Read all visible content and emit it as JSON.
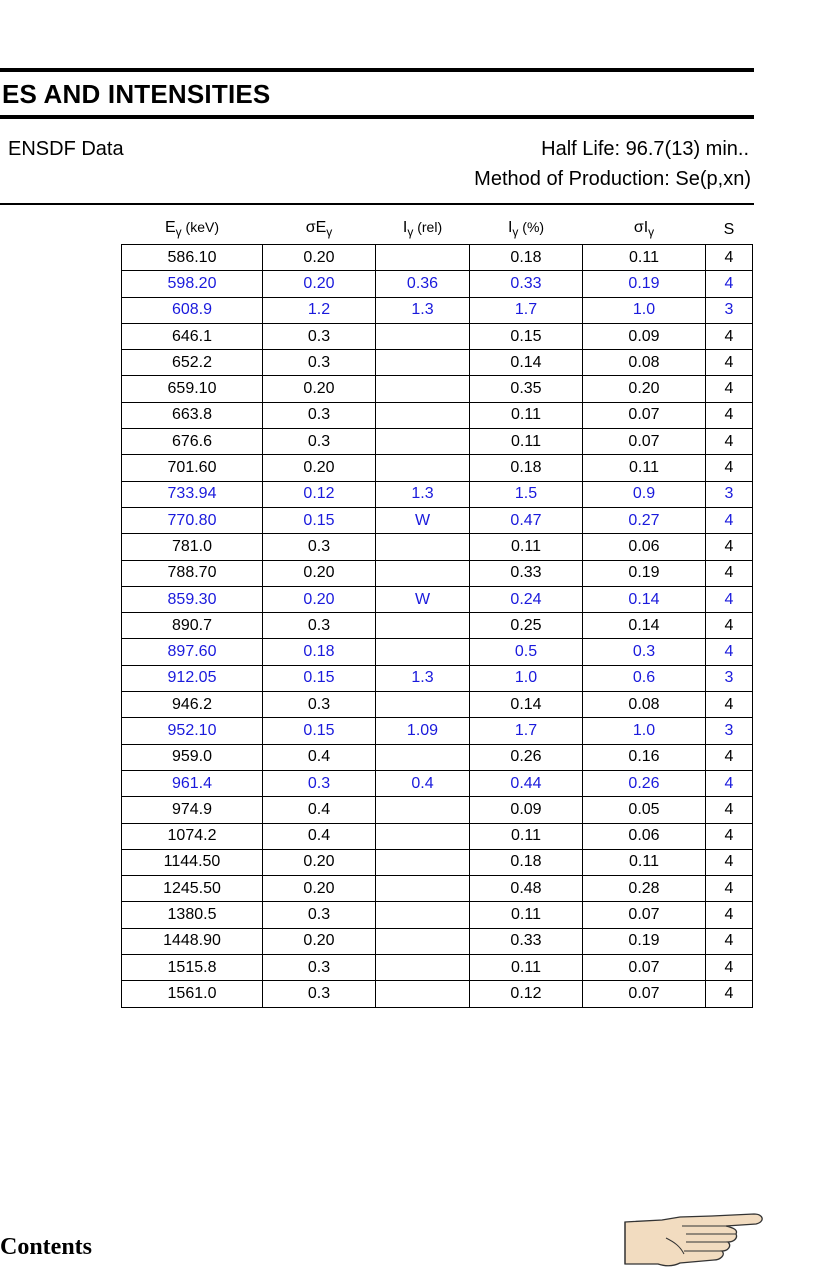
{
  "header": {
    "title": "ES AND INTENSITIES",
    "source": "ENSDF Data",
    "half_life": "Half Life: 96.7(13) min..",
    "method": "Method of Production: Se(p,xn)"
  },
  "table": {
    "columns": [
      {
        "main": "E",
        "sym": "γ",
        "tail": " (keV)"
      },
      {
        "sigma": "σ",
        "main": "E",
        "sym": "γ",
        "tail": ""
      },
      {
        "main": "I",
        "sym": "γ",
        "tail": " (rel)"
      },
      {
        "main": "I",
        "sym": "γ",
        "tail": " (%)"
      },
      {
        "sigma": "σ",
        "main": "I",
        "sym": "γ",
        "tail": ""
      },
      {
        "main": "S",
        "sym": "",
        "tail": ""
      }
    ],
    "rows": [
      {
        "cells": [
          "586.10",
          "0.20",
          "",
          "0.18",
          "0.11",
          "4"
        ],
        "highlight": false
      },
      {
        "cells": [
          "598.20",
          "0.20",
          "0.36",
          "0.33",
          "0.19",
          "4"
        ],
        "highlight": true
      },
      {
        "cells": [
          "608.9",
          "1.2",
          "1.3",
          "1.7",
          "1.0",
          "3"
        ],
        "highlight": true
      },
      {
        "cells": [
          "646.1",
          "0.3",
          "",
          "0.15",
          "0.09",
          "4"
        ],
        "highlight": false
      },
      {
        "cells": [
          "652.2",
          "0.3",
          "",
          "0.14",
          "0.08",
          "4"
        ],
        "highlight": false
      },
      {
        "cells": [
          "659.10",
          "0.20",
          "",
          "0.35",
          "0.20",
          "4"
        ],
        "highlight": false
      },
      {
        "cells": [
          "663.8",
          "0.3",
          "",
          "0.11",
          "0.07",
          "4"
        ],
        "highlight": false
      },
      {
        "cells": [
          "676.6",
          "0.3",
          "",
          "0.11",
          "0.07",
          "4"
        ],
        "highlight": false
      },
      {
        "cells": [
          "701.60",
          "0.20",
          "",
          "0.18",
          "0.11",
          "4"
        ],
        "highlight": false
      },
      {
        "cells": [
          "733.94",
          "0.12",
          "1.3",
          "1.5",
          "0.9",
          "3"
        ],
        "highlight": true
      },
      {
        "cells": [
          "770.80",
          "0.15",
          "W",
          "0.47",
          "0.27",
          "4"
        ],
        "highlight": true
      },
      {
        "cells": [
          "781.0",
          "0.3",
          "",
          "0.11",
          "0.06",
          "4"
        ],
        "highlight": false
      },
      {
        "cells": [
          "788.70",
          "0.20",
          "",
          "0.33",
          "0.19",
          "4"
        ],
        "highlight": false
      },
      {
        "cells": [
          "859.30",
          "0.20",
          "W",
          "0.24",
          "0.14",
          "4"
        ],
        "highlight": true
      },
      {
        "cells": [
          "890.7",
          "0.3",
          "",
          "0.25",
          "0.14",
          "4"
        ],
        "highlight": false
      },
      {
        "cells": [
          "897.60",
          "0.18",
          "",
          "0.5",
          "0.3",
          "4"
        ],
        "highlight": true
      },
      {
        "cells": [
          "912.05",
          "0.15",
          "1.3",
          "1.0",
          "0.6",
          "3"
        ],
        "highlight": true
      },
      {
        "cells": [
          "946.2",
          "0.3",
          "",
          "0.14",
          "0.08",
          "4"
        ],
        "highlight": false
      },
      {
        "cells": [
          "952.10",
          "0.15",
          "1.09",
          "1.7",
          "1.0",
          "3"
        ],
        "highlight": true
      },
      {
        "cells": [
          "959.0",
          "0.4",
          "",
          "0.26",
          "0.16",
          "4"
        ],
        "highlight": false
      },
      {
        "cells": [
          "961.4",
          "0.3",
          "0.4",
          "0.44",
          "0.26",
          "4"
        ],
        "highlight": true
      },
      {
        "cells": [
          "974.9",
          "0.4",
          "",
          "0.09",
          "0.05",
          "4"
        ],
        "highlight": false
      },
      {
        "cells": [
          "1074.2",
          "0.4",
          "",
          "0.11",
          "0.06",
          "4"
        ],
        "highlight": false
      },
      {
        "cells": [
          "1144.50",
          "0.20",
          "",
          "0.18",
          "0.11",
          "4"
        ],
        "highlight": false
      },
      {
        "cells": [
          "1245.50",
          "0.20",
          "",
          "0.48",
          "0.28",
          "4"
        ],
        "highlight": false
      },
      {
        "cells": [
          "1380.5",
          "0.3",
          "",
          "0.11",
          "0.07",
          "4"
        ],
        "highlight": false
      },
      {
        "cells": [
          "1448.90",
          "0.20",
          "",
          "0.33",
          "0.19",
          "4"
        ],
        "highlight": false
      },
      {
        "cells": [
          "1515.8",
          "0.3",
          "",
          "0.11",
          "0.07",
          "4"
        ],
        "highlight": false
      },
      {
        "cells": [
          "1561.0",
          "0.3",
          "",
          "0.12",
          "0.07",
          "4"
        ],
        "highlight": false
      }
    ]
  },
  "footer": {
    "contents_link": "Contents",
    "next_icon": "pointing-hand-icon"
  },
  "colors": {
    "highlight_text": "#1a1adc"
  }
}
